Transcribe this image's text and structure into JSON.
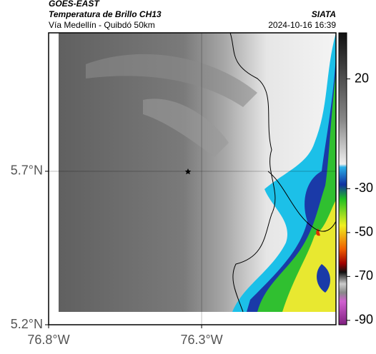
{
  "header": {
    "source": "GOES-EAST",
    "title": "Temperatura de Brillo CH13",
    "subtitle": "Vía Medellín - Quibdó 50km",
    "agency": "SIATA",
    "datetime": "2024-10-16 16:39"
  },
  "map": {
    "lat_range": [
      5.2,
      6.151
    ],
    "lon_range": [
      -76.8,
      -75.861
    ],
    "lat_ticks": [
      {
        "value": 5.7,
        "label": "5.7°N"
      },
      {
        "value": 5.2,
        "label": "5.2°N"
      }
    ],
    "lon_ticks": [
      {
        "value": -76.8,
        "label": "76.8°W"
      },
      {
        "value": -76.3,
        "label": "76.3°W"
      }
    ]
  },
  "colorbar": {
    "range": [
      -92,
      41
    ],
    "ticks": [
      20,
      -30,
      -50,
      -70,
      -90
    ]
  }
}
